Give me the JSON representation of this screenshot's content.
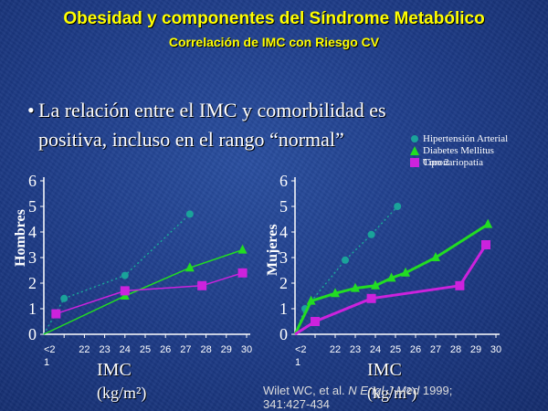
{
  "slide": {
    "title": "Obesidad y componentes del Síndrome Metabólico",
    "subtitle": "Correlación de IMC con Riesgo  CV",
    "bullet_symbol": "•",
    "bullet_line1": "La relación entre el IMC y comorbilidad es",
    "bullet_line2": "positiva, incluso en  el rango “normal”",
    "legend": [
      {
        "label": "Hipertensión Arterial",
        "icon": "circle-marker",
        "color": "#1aa39a"
      },
      {
        "label": "Diabetes Mellitus",
        "icon": "triangle-marker",
        "color": "#22dd22"
      },
      {
        "label": "Tipo 2",
        "icon": "",
        "color": ""
      },
      {
        "label": "Coronariopatía",
        "icon": "square-marker",
        "color": "#cc22dd"
      }
    ],
    "citation_pre": "Wilet WC, et al. ",
    "citation_journal": "N Engl J Med",
    "citation_post": " 1999;",
    "citation_line2": "341:427-434"
  },
  "chart_data": [
    {
      "type": "line",
      "panel": "left",
      "ylabel": "Hombres",
      "xlabel": "IMC",
      "xunit": "(kg/m²)",
      "y_ticks": [
        "0",
        "1",
        "2",
        "3",
        "4",
        "5",
        "6"
      ],
      "x_ticks": [
        "<21",
        "22",
        "23",
        "24",
        "25",
        "26",
        "27",
        "28",
        "29",
        "30"
      ],
      "ylim": [
        0,
        6
      ],
      "series": [
        {
          "name": "Hipertensión Arterial",
          "color": "#1aa39a",
          "marker": "circle",
          "points": [
            [
              20,
              0
            ],
            [
              21,
              1.4
            ],
            [
              24,
              2.3
            ],
            [
              27.2,
              4.7
            ]
          ]
        },
        {
          "name": "Diabetes Mellitus Tipo 2",
          "color": "#22dd22",
          "marker": "triangle",
          "points": [
            [
              20,
              0
            ],
            [
              24,
              1.5
            ],
            [
              27.2,
              2.6
            ],
            [
              29.8,
              3.3
            ]
          ]
        },
        {
          "name": "Coronariopatía",
          "color": "#cc22dd",
          "marker": "square",
          "points": [
            [
              20.6,
              0.8
            ],
            [
              24,
              1.7
            ],
            [
              27.8,
              1.9
            ],
            [
              29.8,
              2.4
            ]
          ]
        }
      ]
    },
    {
      "type": "line",
      "panel": "right",
      "ylabel": "Mujeres",
      "xlabel": "IMC",
      "xunit": "(kg/m²)",
      "y_ticks": [
        "0",
        "1",
        "2",
        "3",
        "4",
        "5",
        "6"
      ],
      "x_ticks": [
        "<21",
        "22",
        "23",
        "24",
        "25",
        "26",
        "27",
        "28",
        "29",
        "30"
      ],
      "ylim": [
        0,
        6
      ],
      "series": [
        {
          "name": "Hipertensión Arterial",
          "color": "#1aa39a",
          "marker": "circle",
          "points": [
            [
              20,
              0
            ],
            [
              20.5,
              1.0
            ],
            [
              22.5,
              2.9
            ],
            [
              23.8,
              3.9
            ],
            [
              25.1,
              5.0
            ]
          ]
        },
        {
          "name": "Diabetes Mellitus Tipo 2",
          "color": "#22dd22",
          "marker": "triangle",
          "points": [
            [
              20,
              0
            ],
            [
              20.8,
              1.3
            ],
            [
              22,
              1.6
            ],
            [
              23,
              1.8
            ],
            [
              24,
              1.9
            ],
            [
              24.8,
              2.2
            ],
            [
              25.5,
              2.4
            ],
            [
              27,
              3.0
            ],
            [
              29.6,
              4.3
            ]
          ]
        },
        {
          "name": "Coronariopatía",
          "color": "#cc22dd",
          "marker": "square",
          "points": [
            [
              20,
              0
            ],
            [
              21,
              0.5
            ],
            [
              23.8,
              1.4
            ],
            [
              28.2,
              1.9
            ],
            [
              29.5,
              3.5
            ]
          ]
        }
      ]
    }
  ]
}
